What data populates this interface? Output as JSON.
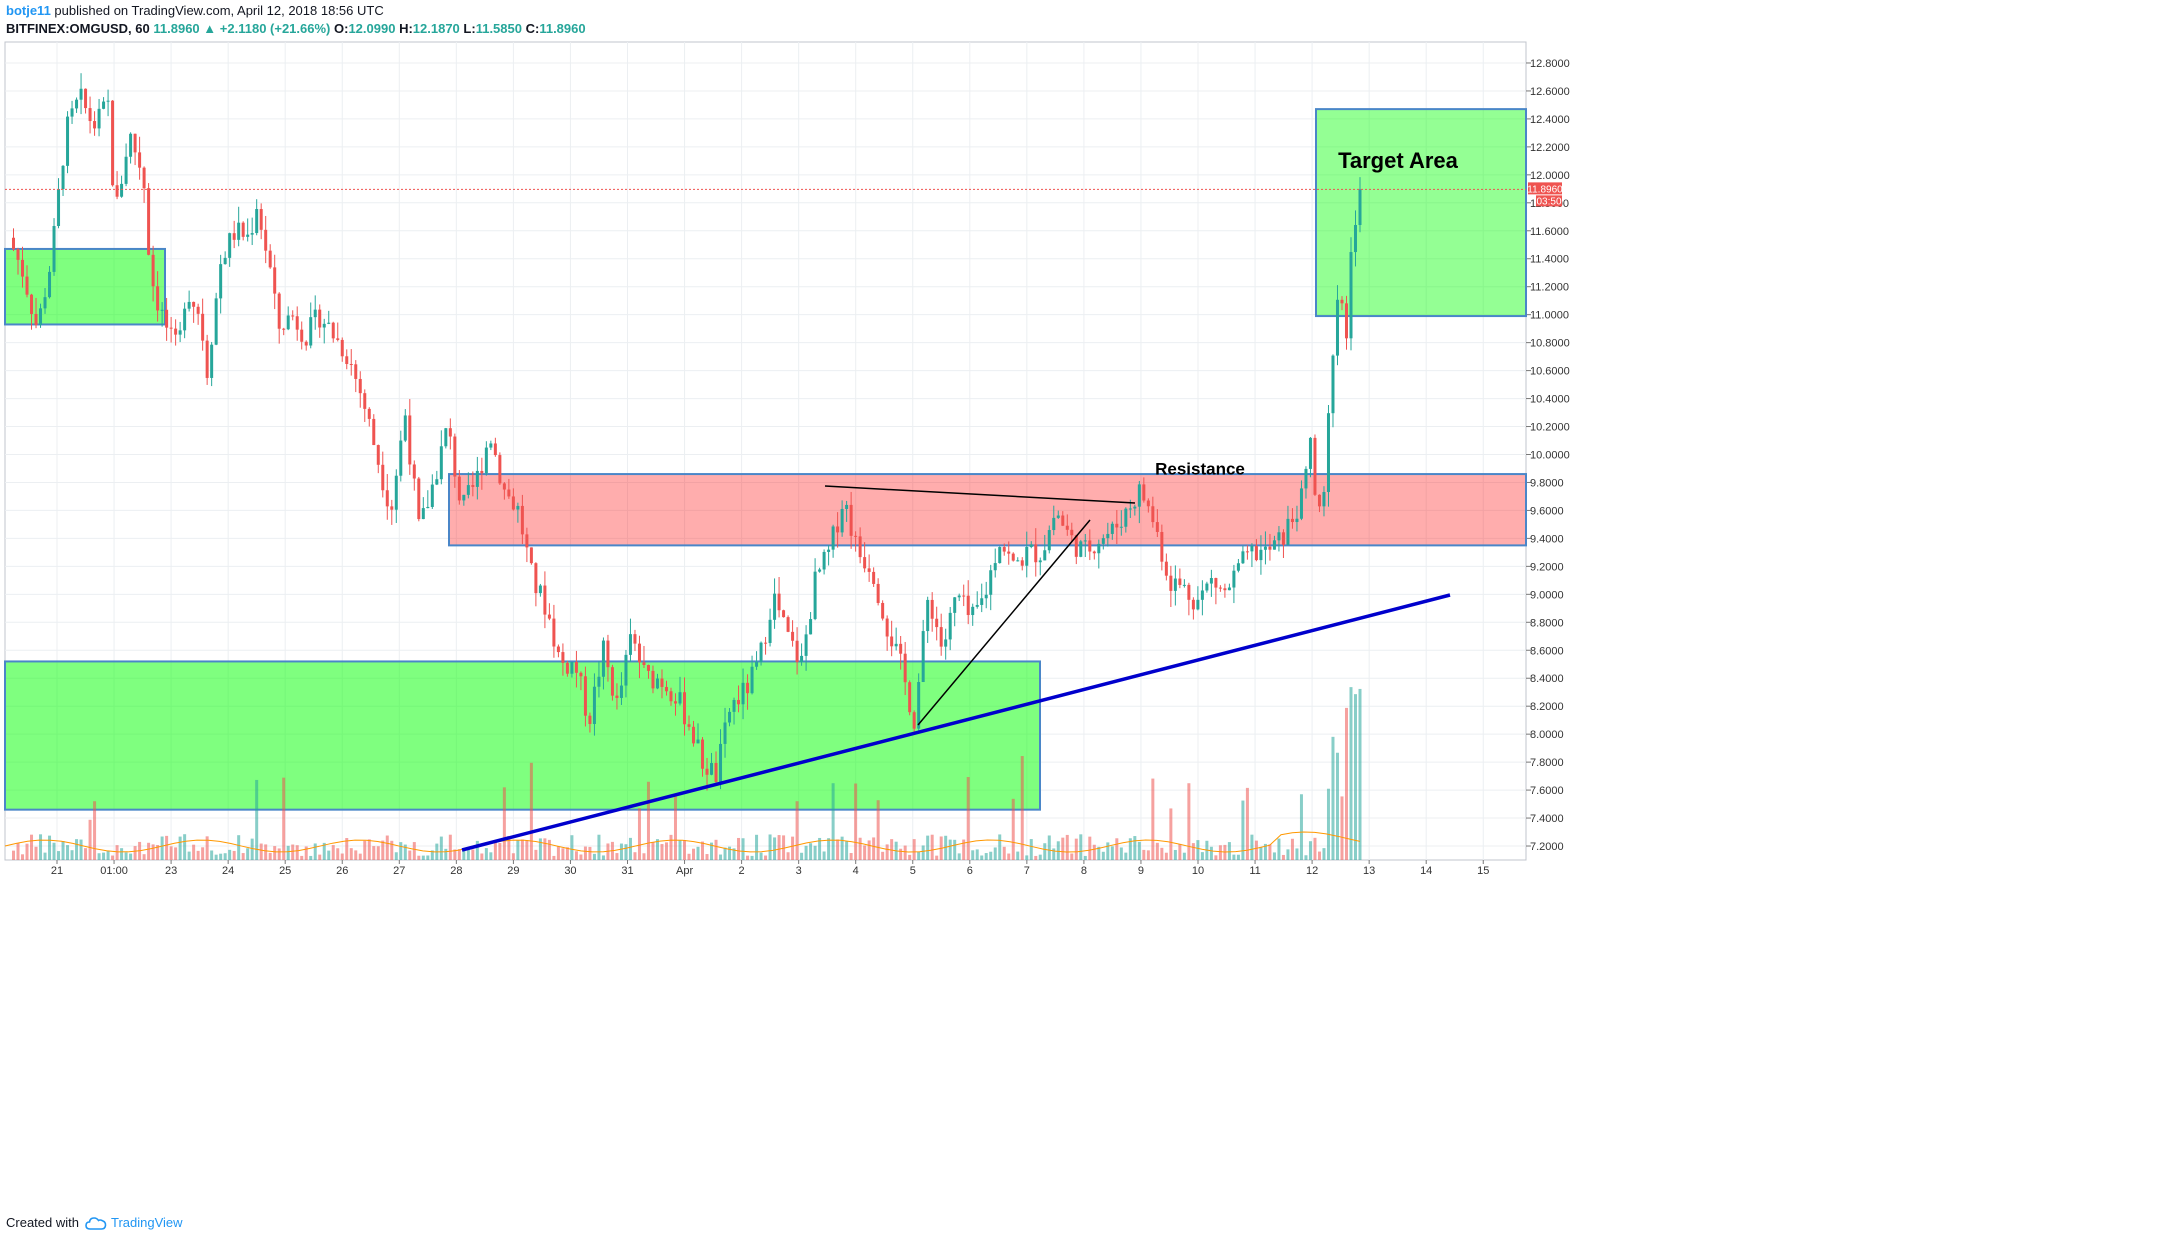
{
  "header": {
    "username": "botje11",
    "published_text": "published on TradingView.com, April 12, 2018 18:56 UTC",
    "symbol": "BITFINEX:OMGUSD, 60",
    "last": "11.8960",
    "change": "+2.1180 (+21.66%)",
    "o_label": "O:",
    "o": "12.0990",
    "h_label": "H:",
    "h": "12.1870",
    "l_label": "L:",
    "l": "11.5850",
    "c_label": "C:",
    "c": "11.8960",
    "arrow_icon": "triangle-up-icon"
  },
  "footer": {
    "created_with": "Created with",
    "brand": "TradingView",
    "logo_icon": "tradingview-cloud-icon"
  },
  "price_tag": {
    "price": "11.8960",
    "countdown": "03:50"
  },
  "colors": {
    "up": "#26a69a",
    "down": "#ef5350",
    "support_zone": "#00ff00",
    "resistance_zone": "#ff0000",
    "trendline": "#0000cc"
  },
  "annotations": {
    "target": "Target Area",
    "resistance": "Resistance"
  },
  "chart_data": {
    "type": "candlestick",
    "y_ticks": [
      "12.8000",
      "12.6000",
      "12.4000",
      "12.2000",
      "12.0000",
      "11.8000",
      "11.6000",
      "11.4000",
      "11.2000",
      "11.0000",
      "10.8000",
      "10.6000",
      "10.4000",
      "10.2000",
      "10.0000",
      "9.8000",
      "9.6000",
      "9.4000",
      "9.2000",
      "9.0000",
      "8.8000",
      "8.6000",
      "8.4000",
      "8.2000",
      "8.0000",
      "7.8000",
      "7.6000",
      "7.4000",
      "7.2000"
    ],
    "x_ticks": [
      "21",
      "01:00",
      "23",
      "24",
      "25",
      "26",
      "27",
      "28",
      "29",
      "30",
      "31",
      "Apr",
      "2",
      "3",
      "4",
      "5",
      "6",
      "7",
      "8",
      "9",
      "10",
      "11",
      "12",
      "13",
      "14",
      "15"
    ],
    "ylim": [
      7.1,
      12.95
    ],
    "grid": true,
    "last_price": 11.896,
    "price_path": [
      [
        0,
        11.55
      ],
      [
        2,
        11.3
      ],
      [
        4,
        10.9
      ],
      [
        6,
        11.4
      ],
      [
        8,
        12.3
      ],
      [
        10,
        12.55
      ],
      [
        12,
        12.35
      ],
      [
        14,
        12.5
      ],
      [
        15,
        11.7
      ],
      [
        17,
        12.3
      ],
      [
        19,
        12.0
      ],
      [
        20,
        11.3
      ],
      [
        21,
        11.1
      ],
      [
        23,
        10.8
      ],
      [
        24,
        10.75
      ],
      [
        25,
        11.2
      ],
      [
        27,
        11.0
      ],
      [
        28,
        10.6
      ],
      [
        30,
        11.4
      ],
      [
        32,
        11.6
      ],
      [
        34,
        11.55
      ],
      [
        35,
        11.8
      ],
      [
        37,
        11.3
      ],
      [
        38,
        10.9
      ],
      [
        40,
        11.0
      ],
      [
        42,
        10.85
      ],
      [
        44,
        11.0
      ],
      [
        46,
        10.85
      ],
      [
        48,
        10.7
      ],
      [
        50,
        10.4
      ],
      [
        52,
        10.0
      ],
      [
        54,
        9.6
      ],
      [
        56,
        10.3
      ],
      [
        58,
        9.45
      ],
      [
        60,
        9.8
      ],
      [
        62,
        10.2
      ],
      [
        64,
        9.6
      ],
      [
        66,
        9.8
      ],
      [
        68,
        10.15
      ],
      [
        70,
        9.75
      ],
      [
        72,
        9.6
      ],
      [
        74,
        9.1
      ],
      [
        76,
        8.9
      ],
      [
        78,
        8.5
      ],
      [
        80,
        8.5
      ],
      [
        82,
        8.1
      ],
      [
        84,
        8.6
      ],
      [
        86,
        8.2
      ],
      [
        88,
        8.7
      ],
      [
        90,
        8.4
      ],
      [
        92,
        8.4
      ],
      [
        94,
        8.3
      ],
      [
        96,
        8.1
      ],
      [
        98,
        7.8
      ],
      [
        100,
        7.7
      ],
      [
        102,
        8.2
      ],
      [
        104,
        8.3
      ],
      [
        106,
        8.5
      ],
      [
        108,
        9.0
      ],
      [
        110,
        8.7
      ],
      [
        112,
        8.5
      ],
      [
        114,
        9.1
      ],
      [
        116,
        9.3
      ],
      [
        118,
        9.7
      ],
      [
        120,
        9.3
      ],
      [
        122,
        9.2
      ],
      [
        124,
        8.8
      ],
      [
        126,
        8.5
      ],
      [
        128,
        8.1
      ],
      [
        130,
        9.0
      ],
      [
        132,
        8.6
      ],
      [
        134,
        9.0
      ],
      [
        136,
        8.8
      ],
      [
        138,
        9.0
      ],
      [
        140,
        9.4
      ],
      [
        142,
        9.2
      ],
      [
        144,
        9.3
      ],
      [
        146,
        9.3
      ],
      [
        148,
        9.6
      ],
      [
        150,
        9.4
      ],
      [
        152,
        9.3
      ],
      [
        154,
        9.4
      ],
      [
        156,
        9.45
      ],
      [
        158,
        9.6
      ],
      [
        160,
        9.75
      ],
      [
        162,
        9.5
      ],
      [
        164,
        9.1
      ],
      [
        166,
        9.05
      ],
      [
        168,
        8.95
      ],
      [
        170,
        9.1
      ],
      [
        172,
        9.0
      ],
      [
        174,
        9.2
      ],
      [
        176,
        9.3
      ],
      [
        178,
        9.3
      ],
      [
        180,
        9.4
      ],
      [
        182,
        9.6
      ],
      [
        183,
        9.7
      ],
      [
        184,
        10.1
      ],
      [
        185,
        9.5
      ],
      [
        186,
        9.7
      ],
      [
        187,
        10.7
      ],
      [
        188,
        11.15
      ],
      [
        189,
        10.8
      ],
      [
        190,
        11.6
      ],
      [
        191,
        11.9
      ]
    ],
    "zones": [
      {
        "kind": "support",
        "y0": 10.93,
        "y1": 11.47
      },
      {
        "kind": "support",
        "y0": 7.46,
        "y1": 8.52
      },
      {
        "kind": "resistance",
        "y0": 9.35,
        "y1": 9.86
      },
      {
        "kind": "target",
        "y0": 10.99,
        "y1": 12.47
      }
    ]
  }
}
